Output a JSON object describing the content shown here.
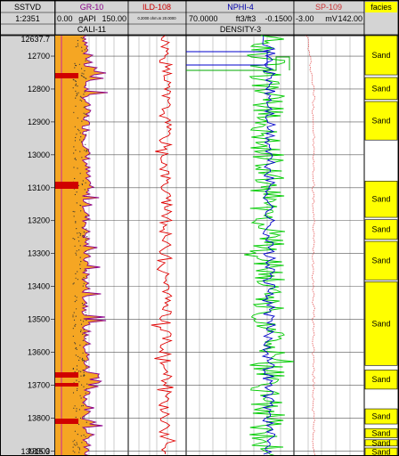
{
  "depth_track": {
    "header": "SSTVD",
    "scale": "1:2351",
    "top_label": "12637.7",
    "bottom_label": "13915.3",
    "ticks": [
      12700,
      12800,
      12900,
      13000,
      13100,
      13200,
      13300,
      13400,
      13500,
      13600,
      13700,
      13800,
      13900
    ]
  },
  "tracks": {
    "gr": {
      "name": "GR-10",
      "min": "0.00",
      "unit": "gAPI",
      "max": "150.00",
      "second": "CALI-11",
      "color": "#8b008b"
    },
    "ild": {
      "name": "ILD-108",
      "range": "0.2000 ohm.m 20.0000",
      "color": "#e00000"
    },
    "nphi": {
      "name": "NPHI-4",
      "min": "70.0000",
      "unit": "ft3/ft3",
      "max": "-0.1500",
      "second": "DENSITY-3",
      "color": "#0000cc"
    },
    "sp": {
      "name": "SP-109",
      "min": "-3.00",
      "unit": "mV",
      "max": "142.00",
      "color": "#e04040"
    },
    "facies": {
      "name": "facies",
      "color": "#ffff00"
    }
  },
  "facies_blocks": [
    {
      "label": "Sand",
      "top": 12637.7,
      "bottom": 12757
    },
    {
      "label": "Sand",
      "top": 12765,
      "bottom": 12832
    },
    {
      "label": "Sand",
      "top": 12838,
      "bottom": 12955
    },
    {
      "label": "Sand",
      "top": 13080,
      "bottom": 13190
    },
    {
      "label": "Sand",
      "top": 13197,
      "bottom": 13257
    },
    {
      "label": "Sand",
      "top": 13263,
      "bottom": 13380
    },
    {
      "label": "Sand",
      "top": 13386,
      "bottom": 13640
    },
    {
      "label": "Sand",
      "top": 13654,
      "bottom": 13712
    },
    {
      "label": "Sand",
      "top": 13772,
      "bottom": 13818
    },
    {
      "label": "Sand",
      "top": 13832,
      "bottom": 13860
    },
    {
      "label": "Sand",
      "top": 13866,
      "bottom": 13885
    },
    {
      "label": "Sand",
      "top": 13891,
      "bottom": 13915.3
    }
  ],
  "facies_gaps": [
    [
      12955,
      12965
    ],
    [
      12990,
      13000
    ],
    [
      13040,
      13060
    ],
    [
      13720,
      13740
    ]
  ]
}
